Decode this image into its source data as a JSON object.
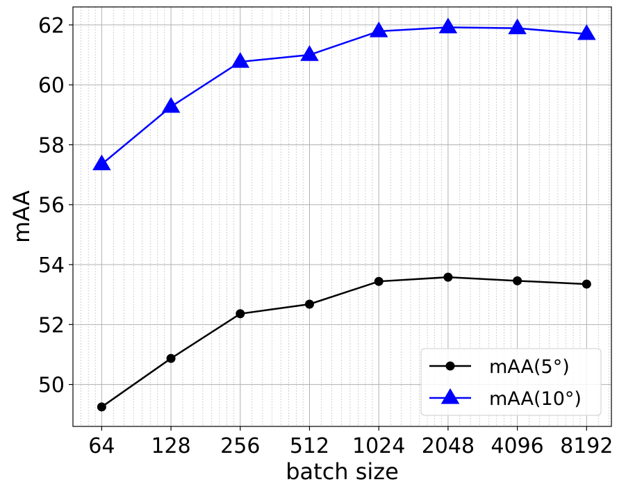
{
  "chart_data": {
    "type": "line",
    "title": "",
    "xlabel": "batch size",
    "ylabel": "mAA",
    "x_scale": "log2",
    "categories": [
      "64",
      "128",
      "256",
      "512",
      "1024",
      "2048",
      "4096",
      "8192"
    ],
    "x": [
      64,
      128,
      256,
      512,
      1024,
      2048,
      4096,
      8192
    ],
    "y_ticks": [
      "50",
      "52",
      "54",
      "56",
      "58",
      "60",
      "62"
    ],
    "ylim": [
      48.6,
      62.6
    ],
    "grid": true,
    "minor_grid": true,
    "legend_position": "lower-right",
    "series": [
      {
        "name": "mAA(5°)",
        "marker": "circle",
        "color": "#000000",
        "values": [
          49.25,
          50.87,
          52.36,
          52.68,
          53.44,
          53.58,
          53.46,
          53.35
        ]
      },
      {
        "name": "mAA(10°)",
        "marker": "triangle",
        "color": "#0000ff",
        "values": [
          57.35,
          59.27,
          60.77,
          61.0,
          61.79,
          61.92,
          61.89,
          61.7
        ]
      }
    ]
  }
}
